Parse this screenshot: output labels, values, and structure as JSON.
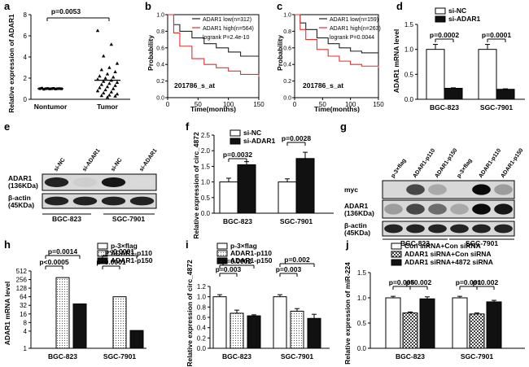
{
  "panels": {
    "a": {
      "letter": "a",
      "chart_data": {
        "type": "scatter",
        "ylabel": "Relative expression of ADAR1",
        "categories": [
          "Nontumor",
          "Tumor"
        ],
        "ylim": [
          0,
          8
        ],
        "yticks": [
          "0",
          "2",
          "4",
          "6",
          "8"
        ],
        "pvalue": "p=0.0053",
        "groups": [
          {
            "name": "Nontumor",
            "values": [
              1.0,
              1.05,
              0.95,
              1.0,
              1.02,
              0.98,
              1.0,
              1.03,
              0.97,
              1.0,
              1.01,
              0.99
            ]
          },
          {
            "name": "Tumor",
            "values": [
              6.5,
              5.2,
              4.1,
              3.4,
              3.0,
              2.8,
              2.6,
              2.4,
              2.2,
              2.1,
              2.0,
              1.9,
              1.8,
              1.7,
              1.6,
              1.5,
              1.4,
              1.3,
              1.2,
              1.1,
              1.0,
              0.9,
              0.8,
              0.7,
              0.6,
              0.5,
              0.4,
              0.35,
              0.3,
              0.2
            ]
          }
        ],
        "mean_tumor": 1.8
      }
    },
    "b": {
      "letter": "b",
      "chart_data": {
        "type": "line",
        "xlabel": "Time(months)",
        "ylabel": "Probability",
        "xlim": [
          0,
          150
        ],
        "ylim": [
          0,
          1
        ],
        "xticks": [
          "0",
          "50",
          "100",
          "150"
        ],
        "yticks": [
          "0.0",
          "0.2",
          "0.4",
          "0.6",
          "0.8",
          "1.0"
        ],
        "probe": "201786_s_at",
        "legend": [
          "ADAR1 low(n=312)",
          "ADAR1 high(n=564)",
          "logrank P=2.4e-10"
        ],
        "series": [
          {
            "name": "ADAR1 low(n=312)",
            "color": "#222222",
            "x": [
              0,
              10,
              20,
              40,
              60,
              80,
              100,
              120,
              150
            ],
            "y": [
              1.0,
              0.88,
              0.8,
              0.72,
              0.65,
              0.6,
              0.55,
              0.5,
              0.48
            ]
          },
          {
            "name": "ADAR1 high(n=564)",
            "color": "#e03030",
            "x": [
              0,
              10,
              20,
              40,
              60,
              80,
              100,
              120,
              150
            ],
            "y": [
              1.0,
              0.78,
              0.62,
              0.47,
              0.4,
              0.36,
              0.32,
              0.28,
              0.25
            ]
          }
        ]
      }
    },
    "c": {
      "letter": "c",
      "chart_data": {
        "type": "line",
        "xlabel": "Time(months)",
        "ylabel": "Probability",
        "xlim": [
          0,
          150
        ],
        "ylim": [
          0,
          1
        ],
        "xticks": [
          "0",
          "50",
          "100",
          "150"
        ],
        "yticks": [
          "0.0",
          "0.2",
          "0.4",
          "0.6",
          "0.8",
          "1.0"
        ],
        "probe": "201786_s_at",
        "legend": [
          "ADAR1 low(n=159)",
          "ADAR1 high(n=263)",
          "logrank P=0.0044"
        ],
        "series": [
          {
            "name": "ADAR1 low(n=159)",
            "color": "#222222",
            "x": [
              0,
              10,
              20,
              40,
              60,
              80,
              100,
              120,
              150
            ],
            "y": [
              1.0,
              0.9,
              0.82,
              0.72,
              0.65,
              0.6,
              0.56,
              0.54,
              0.52
            ]
          },
          {
            "name": "ADAR1 high(n=263)",
            "color": "#e03030",
            "x": [
              0,
              10,
              20,
              40,
              60,
              80,
              100,
              120,
              150
            ],
            "y": [
              1.0,
              0.82,
              0.7,
              0.58,
              0.5,
              0.44,
              0.4,
              0.38,
              0.36
            ]
          }
        ]
      }
    },
    "d": {
      "letter": "d",
      "chart_data": {
        "type": "bar",
        "ylabel": "ADAR1 mRNA level",
        "categories": [
          "BGC-823",
          "SGC-7901"
        ],
        "ylim": [
          0,
          1.5
        ],
        "yticks": [
          "0.0",
          "0.5",
          "1.0",
          "1.5"
        ],
        "series": [
          {
            "name": "si-NC",
            "fill": "#ffffff",
            "values": [
              1.0,
              1.0
            ],
            "err": [
              0.1,
              0.1
            ]
          },
          {
            "name": "si-ADAR1",
            "fill": "#111111",
            "values": [
              0.22,
              0.2
            ],
            "err": [
              0.01,
              0.01
            ]
          }
        ],
        "pvalues": [
          "p=0.0002",
          "p=0.0001"
        ]
      }
    },
    "e": {
      "letter": "e",
      "lanes": [
        "si-NC",
        "si-ADAR1",
        "si-NC",
        "si-ADAR1"
      ],
      "rows": [
        "ADAR1 (136KDa)",
        "β-actin (45KDa)"
      ],
      "row_label_lines": [
        [
          "ADAR1",
          "(136KDa)"
        ],
        [
          "β-actin",
          "(45KDa)"
        ]
      ],
      "groups": [
        "BGC-823",
        "SGC-7901"
      ],
      "band_intensity": [
        [
          0.9,
          0.2,
          0.95,
          0.15
        ],
        [
          0.9,
          0.9,
          0.9,
          0.9
        ]
      ]
    },
    "f": {
      "letter": "f",
      "chart_data": {
        "type": "bar",
        "ylabel": "Relative expression of circ_4872",
        "categories": [
          "BGC-823",
          "SGC-7901"
        ],
        "ylim": [
          0,
          2.5
        ],
        "yticks": [
          "0.0",
          "0.5",
          "1.0",
          "1.5",
          "2.0",
          "2.5"
        ],
        "series": [
          {
            "name": "si-NC",
            "fill": "#ffffff",
            "values": [
              1.0,
              1.0
            ],
            "err": [
              0.12,
              0.1
            ]
          },
          {
            "name": "si-ADAR1",
            "fill": "#111111",
            "values": [
              1.55,
              1.75
            ],
            "err": [
              0.1,
              0.2
            ]
          }
        ],
        "pvalues": [
          "p=0.0032",
          "p=0.0028"
        ]
      }
    },
    "g": {
      "letter": "g",
      "lanes": [
        "p-3×flag",
        "ADAR1-p110",
        "ADAR1-p150",
        "p-3×flag",
        "ADAR1-p110",
        "ADAR1-p150"
      ],
      "rows": [
        "myc",
        "ADAR1 (136KDa)",
        "β-actin (45KDa)"
      ],
      "row_label_lines": [
        [
          "myc"
        ],
        [
          "ADAR1",
          "(136KDa)"
        ],
        [
          "β-actin",
          "(45KDa)"
        ]
      ],
      "groups": [
        "BGC-823",
        "SGC-7901"
      ],
      "band_intensity": [
        [
          0.0,
          0.75,
          0.35,
          0.0,
          1.0,
          0.4
        ],
        [
          0.4,
          0.75,
          0.6,
          0.35,
          1.0,
          0.95
        ],
        [
          0.9,
          0.9,
          0.9,
          0.9,
          0.9,
          0.9
        ]
      ]
    },
    "h": {
      "letter": "h",
      "chart_data": {
        "type": "bar",
        "scale": "log2",
        "ylabel": "ADAR1 mRNA level",
        "categories": [
          "BGC-823",
          "SGC-7901"
        ],
        "ylim": [
          1,
          512
        ],
        "yticks": [
          "1",
          "4",
          "8",
          "16",
          "32",
          "64",
          "128",
          "256",
          "512"
        ],
        "series": [
          {
            "name": "p-3×flag",
            "fill": "#ffffff",
            "values": [
              1.0,
              1.0
            ]
          },
          {
            "name": "ADAR1-p110",
            "fill": "dots",
            "values": [
              300,
              64
            ]
          },
          {
            "name": "ADAR1-p150",
            "fill": "#111111",
            "values": [
              36,
              4.2
            ]
          }
        ],
        "pvalues": [
          "p=0.0014",
          "p<0.0005",
          "p<0.0001",
          "p<0.0001"
        ]
      }
    },
    "i": {
      "letter": "i",
      "chart_data": {
        "type": "bar",
        "ylabel": "Relative expression of circ_4872",
        "categories": [
          "BGC-823",
          "SGC-7901"
        ],
        "ylim": [
          0,
          1.2
        ],
        "yticks": [
          "0.0",
          "0.2",
          "0.4",
          "0.6",
          "0.8",
          "1.0",
          "1.2"
        ],
        "series": [
          {
            "name": "p-3×flag",
            "fill": "#ffffff",
            "values": [
              1.0,
              1.0
            ],
            "err": [
              0.04,
              0.04
            ]
          },
          {
            "name": "ADAR1-p110",
            "fill": "dots",
            "values": [
              0.68,
              0.72
            ],
            "err": [
              0.06,
              0.05
            ]
          },
          {
            "name": "ADAR1-p150",
            "fill": "#111111",
            "values": [
              0.63,
              0.58
            ],
            "err": [
              0.02,
              0.08
            ]
          }
        ],
        "pvalues": [
          "p=0.0002",
          "p=0.003",
          "p=0.002",
          "p=0.003"
        ]
      }
    },
    "j": {
      "letter": "j",
      "chart_data": {
        "type": "bar",
        "ylabel": "Relative expression of miR-224",
        "categories": [
          "BGC-823",
          "SGC-7901"
        ],
        "ylim": [
          0,
          1.5
        ],
        "yticks": [
          "0.0",
          "0.5",
          "1.0",
          "1.5"
        ],
        "series": [
          {
            "name": "Con siRNA+Con siRNA",
            "fill": "#ffffff",
            "values": [
              1.0,
              1.0
            ],
            "err": [
              0.03,
              0.03
            ]
          },
          {
            "name": "ADAR1 siRNA+Con siRNA",
            "fill": "check",
            "values": [
              0.7,
              0.68
            ],
            "err": [
              0.02,
              0.02
            ]
          },
          {
            "name": "ADAR1 siRNA+4872 siRNA",
            "fill": "#111111",
            "values": [
              0.98,
              0.92
            ],
            "err": [
              0.04,
              0.03
            ]
          }
        ],
        "pvalues": [
          "p=0.005",
          "p=0.002",
          "p=0.001",
          "p=0.002"
        ]
      }
    }
  }
}
